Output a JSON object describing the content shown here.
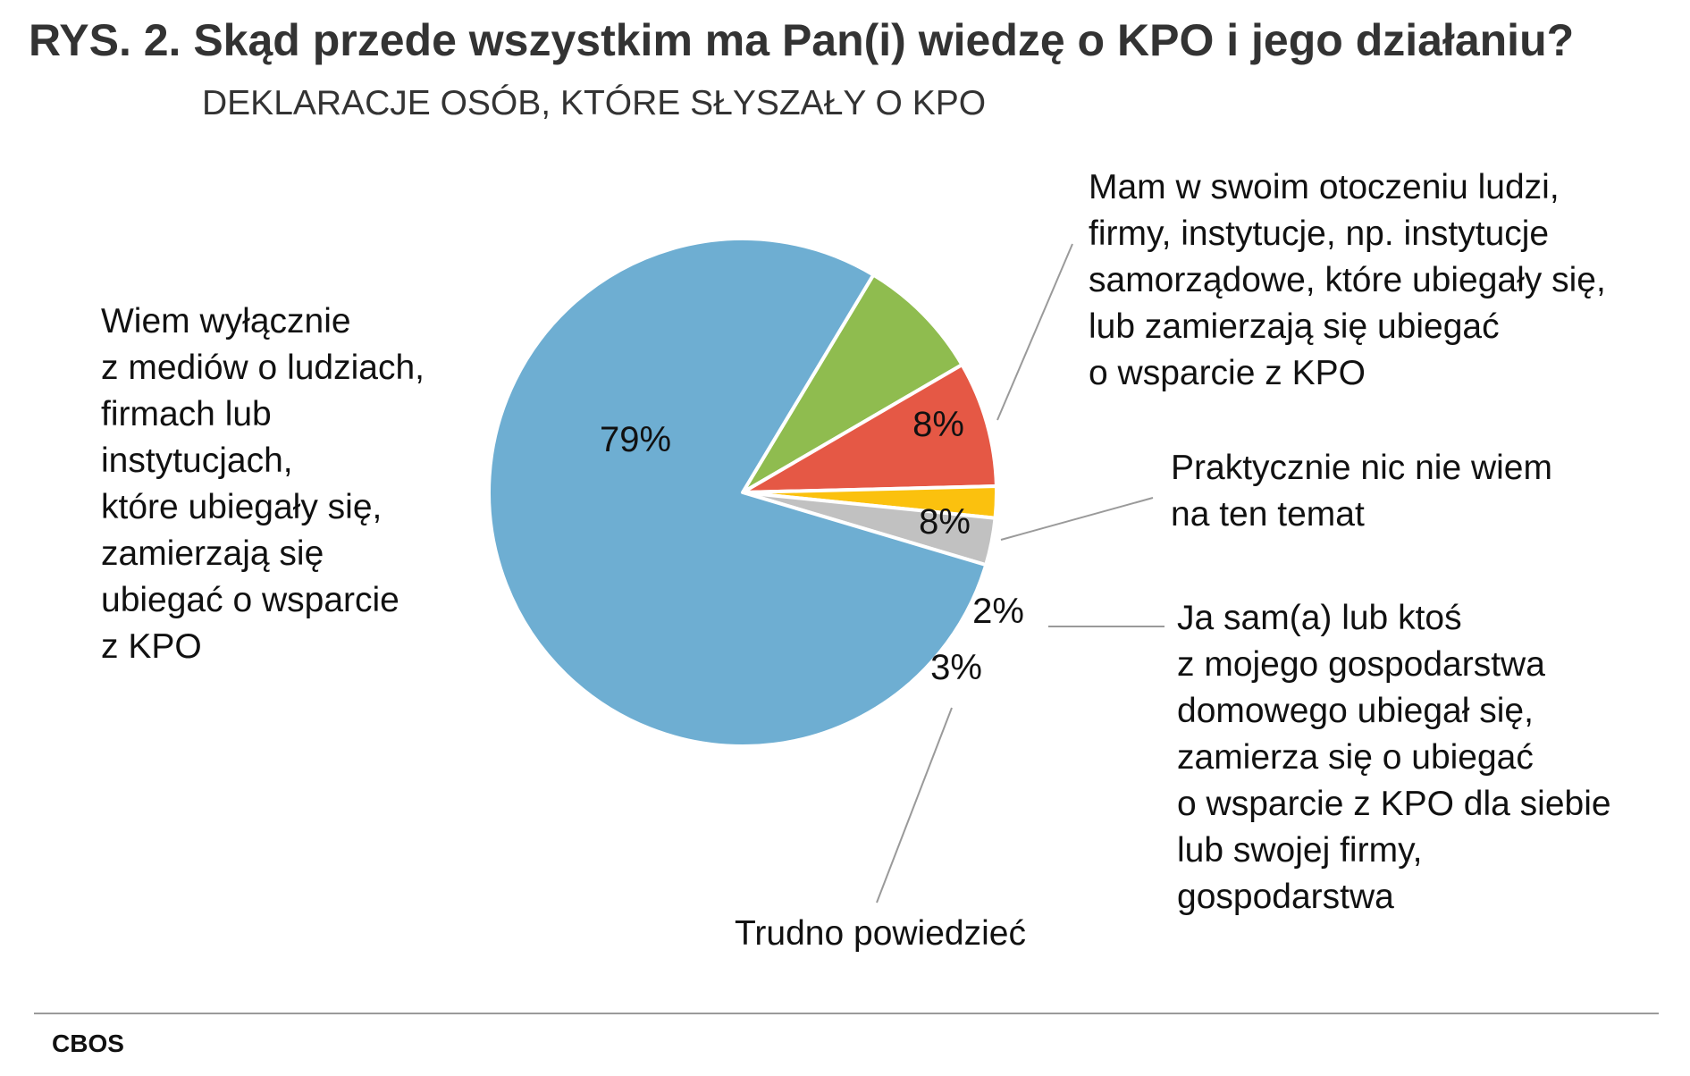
{
  "title": "RYS. 2. Skąd przede wszystkim ma Pan(i) wiedzę o KPO i jego działaniu?",
  "subtitle": "DEKLARACJE OSÓB, KTÓRE SŁYSZAŁY O KPO",
  "source": "CBOS",
  "chart_data": {
    "type": "pie",
    "title": "RYS. 2. Skąd przede wszystkim ma Pan(i) wiedzę o KPO i jego działaniu?",
    "subtitle": "DEKLARACJE OSÓB, KTÓRE SŁYSZAŁY O KPO",
    "slices": [
      {
        "name": "Mam w swoim otoczeniu ludzi, firmy, instytucje, np. instytucje samorządowe, które ubiegały się, lub zamierzają się ubiegać o wsparcie z KPO",
        "value": 8,
        "label": "8%",
        "color": "#8fbc4f",
        "lines": [
          "Mam w swoim otoczeniu ludzi,",
          "firmy, instytucje, np. instytucje",
          "samorządowe, które ubiegały się,",
          "lub zamierzają się ubiegać",
          "o wsparcie z KPO"
        ]
      },
      {
        "name": "Praktycznie nic nie wiem na ten temat",
        "value": 8,
        "label": "8%",
        "color": "#e55845",
        "lines": [
          "Praktycznie nic nie wiem",
          "na ten temat"
        ]
      },
      {
        "name": "Ja sam(a) lub ktoś z mojego gospodarstwa domowego ubiegał się, zamierza się o ubiegać o wsparcie z KPO dla siebie lub swojej firmy, gospodarstwa",
        "value": 2,
        "label": "2%",
        "color": "#fbc10e",
        "lines": [
          "Ja sam(a) lub ktoś",
          "z mojego gospodarstwa",
          "domowego ubiegał się,",
          "zamierza się o ubiegać",
          "o wsparcie z KPO dla siebie",
          "lub swojej firmy,",
          "gospodarstwa"
        ]
      },
      {
        "name": "Trudno powiedzieć",
        "value": 3,
        "label": "3%",
        "color": "#c1c1c1",
        "lines": [
          "Trudno powiedzieć"
        ]
      },
      {
        "name": "Wiem wyłącznie z mediów o ludziach, firmach lub instytucjach, które ubiegały się, zamierzają się ubiegać o wsparcie z KPO",
        "value": 79,
        "label": "79%",
        "color": "#6eaed2",
        "lines": [
          "Wiem wyłącznie",
          "z mediów o ludziach,",
          "firmach lub",
          "instytucjach,",
          "które ubiegały się,",
          "zamierzają się",
          "ubiegać o wsparcie",
          "z KPO"
        ]
      }
    ]
  }
}
